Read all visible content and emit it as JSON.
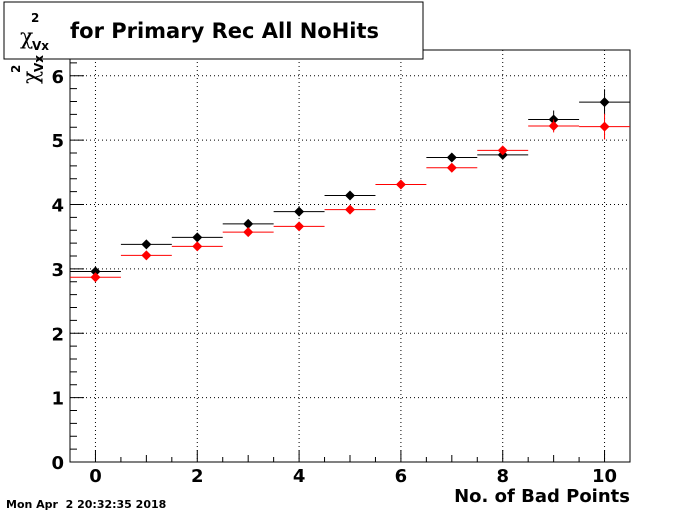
{
  "chart_data": {
    "type": "scatter",
    "title_prefix": "χ",
    "title_superscript": "2",
    "title_subscript": "Vx",
    "title_suffix": "for Primary Rec All NoHits",
    "ylabel_symbol": "χ",
    "ylabel_superscript": "2",
    "ylabel_subscript": "Vx",
    "xlabel": "No. of Bad Points",
    "xlim": [
      -0.5,
      10.5
    ],
    "ylim": [
      0,
      6.4
    ],
    "xticks": [
      0,
      2,
      4,
      6,
      8,
      10
    ],
    "yticks": [
      0,
      1,
      2,
      3,
      4,
      5,
      6
    ],
    "grid": true,
    "bin_half_width": 0.5,
    "series": [
      {
        "color": "#000000",
        "x": [
          0,
          1,
          2,
          3,
          4,
          5,
          7,
          8,
          9,
          10
        ],
        "y": [
          2.96,
          3.38,
          3.49,
          3.7,
          3.89,
          4.14,
          4.73,
          4.77,
          5.32,
          5.59
        ],
        "yerr": [
          0.03,
          0.03,
          0.03,
          0.03,
          0.03,
          0.03,
          0.07,
          0.07,
          0.14,
          0.2
        ]
      },
      {
        "color": "#ff0000",
        "x": [
          0,
          1,
          2,
          3,
          4,
          5,
          6,
          7,
          8,
          9,
          10
        ],
        "y": [
          2.87,
          3.21,
          3.35,
          3.57,
          3.66,
          3.92,
          4.31,
          4.57,
          4.84,
          5.22,
          5.21
        ],
        "yerr": [
          0.03,
          0.03,
          0.03,
          0.03,
          0.03,
          0.03,
          0.03,
          0.05,
          0.06,
          0.1,
          0.2
        ]
      }
    ]
  },
  "footer": {
    "timestamp": "Mon Apr  2 20:32:35 2018"
  }
}
